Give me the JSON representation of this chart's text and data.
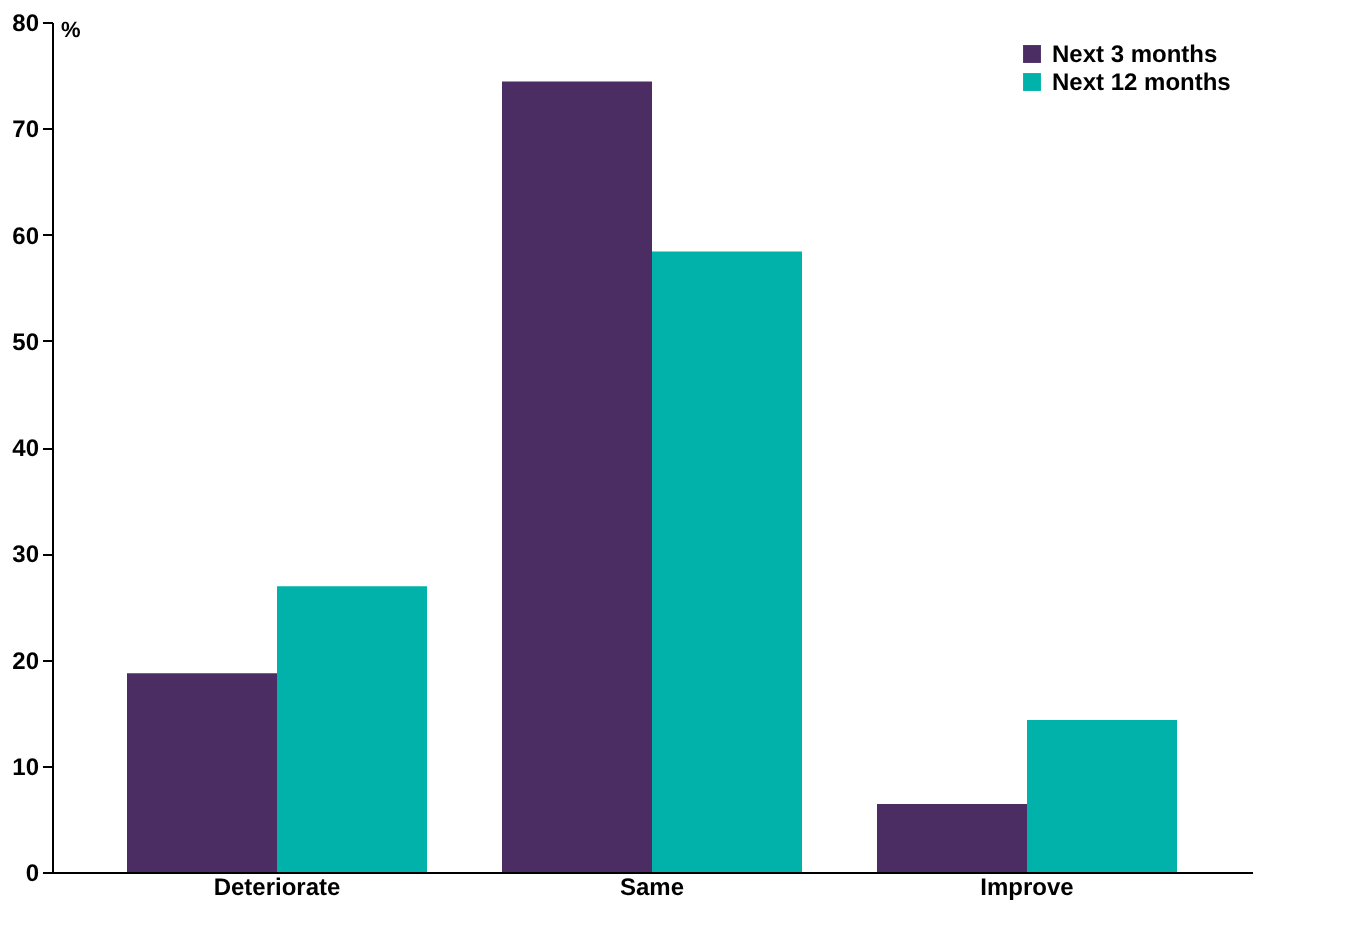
{
  "chart_data": {
    "type": "bar",
    "ylabel": "%",
    "categories": [
      "Deteriorate",
      "Same",
      "Improve"
    ],
    "series": [
      {
        "name": "Next 3 months",
        "color": "#4b2d64",
        "values": [
          18.7,
          74.4,
          6.4
        ]
      },
      {
        "name": "Next 12 months",
        "color": "#00b2a9",
        "values": [
          26.9,
          58.4,
          14.3
        ]
      }
    ],
    "ylim": [
      0,
      80
    ],
    "yticks": [
      0,
      10,
      20,
      30,
      40,
      50,
      60,
      70,
      80
    ],
    "grid": false,
    "legend": "top right"
  }
}
